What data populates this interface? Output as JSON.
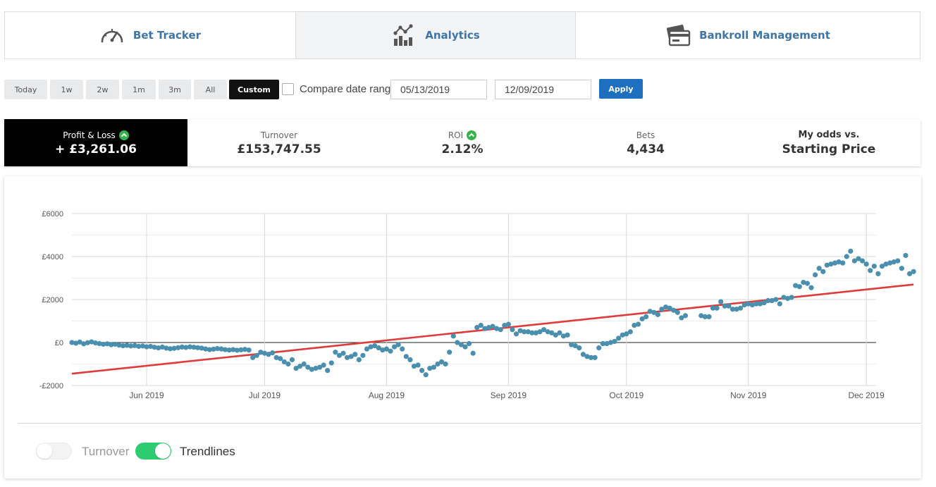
{
  "nav": {
    "tabs": [
      {
        "label": "Bet Tracker",
        "icon": "speedometer-icon",
        "active": false
      },
      {
        "label": "Analytics",
        "icon": "analytics-icon",
        "active": true
      },
      {
        "label": "Bankroll Management",
        "icon": "wallet-cards-icon",
        "active": false
      }
    ]
  },
  "filters": {
    "ranges": [
      "Today",
      "1w",
      "2w",
      "1m",
      "3m",
      "All",
      "Custom"
    ],
    "active_range": "Custom",
    "compare_label": "Compare date range",
    "compare_checked": false,
    "start_date": "05/13/2019",
    "end_date": "12/09/2019",
    "apply_label": "Apply",
    "accent_color": "#1e6fbe"
  },
  "stats": {
    "profit": {
      "label": "Profit & Loss",
      "value": "+ £3,261.06"
    },
    "turnover": {
      "label": "Turnover",
      "value": "£153,747.55"
    },
    "roi": {
      "label": "ROI",
      "value": "2.12%"
    },
    "bets": {
      "label": "Bets",
      "value": "4,434"
    },
    "odds": {
      "label": "My odds vs.",
      "value": "Starting Price"
    }
  },
  "chart_data": {
    "type": "scatter",
    "title": "",
    "xlabel": "",
    "ylabel": "",
    "x_start": "2019-05-13",
    "x_end": "2019-12-09",
    "x_ticks": [
      {
        "date": "2019-06-01",
        "label": "Jun 2019"
      },
      {
        "date": "2019-07-01",
        "label": "Jul 2019"
      },
      {
        "date": "2019-08-01",
        "label": "Aug 2019"
      },
      {
        "date": "2019-09-01",
        "label": "Sep 2019"
      },
      {
        "date": "2019-10-01",
        "label": "Oct 2019"
      },
      {
        "date": "2019-11-01",
        "label": "Nov 2019"
      },
      {
        "date": "2019-12-01",
        "label": "Dec 2019"
      }
    ],
    "y_ticks": [
      {
        "value": 6000,
        "label": "£6000"
      },
      {
        "value": 4000,
        "label": "£4000"
      },
      {
        "value": 2000,
        "label": "£2000"
      },
      {
        "value": 0,
        "label": "£0"
      },
      {
        "value": -2000,
        "label": "-£2000"
      }
    ],
    "ylim": [
      -2000,
      6000
    ],
    "grid": true,
    "point_color": "#4a8fae",
    "trend_color": "#e03b3b",
    "series": [
      {
        "values": [
          [
            "2019-05-13",
            0
          ],
          [
            "2019-05-14",
            -30
          ],
          [
            "2019-05-15",
            20
          ],
          [
            "2019-05-16",
            -60
          ],
          [
            "2019-05-17",
            -10
          ],
          [
            "2019-05-18",
            30
          ],
          [
            "2019-05-19",
            -20
          ],
          [
            "2019-05-20",
            -50
          ],
          [
            "2019-05-21",
            -80
          ],
          [
            "2019-05-22",
            -60
          ],
          [
            "2019-05-23",
            -100
          ],
          [
            "2019-05-24",
            -80
          ],
          [
            "2019-05-25",
            -120
          ],
          [
            "2019-05-26",
            -150
          ],
          [
            "2019-05-27",
            -130
          ],
          [
            "2019-05-28",
            -160
          ],
          [
            "2019-05-29",
            -140
          ],
          [
            "2019-05-30",
            -180
          ],
          [
            "2019-05-31",
            -160
          ],
          [
            "2019-06-01",
            -200
          ],
          [
            "2019-06-02",
            -180
          ],
          [
            "2019-06-03",
            -220
          ],
          [
            "2019-06-04",
            -250
          ],
          [
            "2019-06-05",
            -210
          ],
          [
            "2019-06-06",
            -260
          ],
          [
            "2019-06-07",
            -290
          ],
          [
            "2019-06-08",
            -270
          ],
          [
            "2019-06-09",
            -240
          ],
          [
            "2019-06-10",
            -210
          ],
          [
            "2019-06-11",
            -230
          ],
          [
            "2019-06-12",
            -200
          ],
          [
            "2019-06-13",
            -220
          ],
          [
            "2019-06-14",
            -240
          ],
          [
            "2019-06-15",
            -260
          ],
          [
            "2019-06-16",
            -300
          ],
          [
            "2019-06-17",
            -330
          ],
          [
            "2019-06-18",
            -310
          ],
          [
            "2019-06-19",
            -280
          ],
          [
            "2019-06-20",
            -300
          ],
          [
            "2019-06-21",
            -330
          ],
          [
            "2019-06-22",
            -350
          ],
          [
            "2019-06-23",
            -330
          ],
          [
            "2019-06-24",
            -360
          ],
          [
            "2019-06-25",
            -340
          ],
          [
            "2019-06-26",
            -320
          ],
          [
            "2019-06-27",
            -350
          ],
          [
            "2019-06-28",
            -700
          ],
          [
            "2019-06-29",
            -600
          ],
          [
            "2019-06-30",
            -450
          ],
          [
            "2019-07-01",
            -500
          ],
          [
            "2019-07-02",
            -550
          ],
          [
            "2019-07-03",
            -480
          ],
          [
            "2019-07-04",
            -700
          ],
          [
            "2019-07-05",
            -750
          ],
          [
            "2019-07-06",
            -900
          ],
          [
            "2019-07-07",
            -1000
          ],
          [
            "2019-07-08",
            -800
          ],
          [
            "2019-07-09",
            -1200
          ],
          [
            "2019-07-10",
            -1100
          ],
          [
            "2019-07-11",
            -1000
          ],
          [
            "2019-07-12",
            -1150
          ],
          [
            "2019-07-13",
            -1250
          ],
          [
            "2019-07-14",
            -1200
          ],
          [
            "2019-07-15",
            -1150
          ],
          [
            "2019-07-16",
            -1050
          ],
          [
            "2019-07-17",
            -1300
          ],
          [
            "2019-07-18",
            -950
          ],
          [
            "2019-07-19",
            -450
          ],
          [
            "2019-07-20",
            -600
          ],
          [
            "2019-07-21",
            -500
          ],
          [
            "2019-07-22",
            -700
          ],
          [
            "2019-07-23",
            -650
          ],
          [
            "2019-07-24",
            -550
          ],
          [
            "2019-07-25",
            -800
          ],
          [
            "2019-07-26",
            -600
          ],
          [
            "2019-07-27",
            -300
          ],
          [
            "2019-07-28",
            -200
          ],
          [
            "2019-07-29",
            -150
          ],
          [
            "2019-07-30",
            -250
          ],
          [
            "2019-07-31",
            -350
          ],
          [
            "2019-08-01",
            -300
          ],
          [
            "2019-08-02",
            -400
          ],
          [
            "2019-08-03",
            -200
          ],
          [
            "2019-08-04",
            -100
          ],
          [
            "2019-08-05",
            -300
          ],
          [
            "2019-08-06",
            -650
          ],
          [
            "2019-08-07",
            -800
          ],
          [
            "2019-08-08",
            -1100
          ],
          [
            "2019-08-09",
            -1050
          ],
          [
            "2019-08-10",
            -1300
          ],
          [
            "2019-08-11",
            -1500
          ],
          [
            "2019-08-12",
            -1200
          ],
          [
            "2019-08-13",
            -1150
          ],
          [
            "2019-08-14",
            -1000
          ],
          [
            "2019-08-15",
            -900
          ],
          [
            "2019-08-16",
            -1000
          ],
          [
            "2019-08-17",
            -450
          ],
          [
            "2019-08-18",
            300
          ],
          [
            "2019-08-19",
            0
          ],
          [
            "2019-08-20",
            -100
          ],
          [
            "2019-08-21",
            -200
          ],
          [
            "2019-08-22",
            -50
          ],
          [
            "2019-08-23",
            -500
          ],
          [
            "2019-08-24",
            700
          ],
          [
            "2019-08-25",
            800
          ],
          [
            "2019-08-26",
            650
          ],
          [
            "2019-08-27",
            700
          ],
          [
            "2019-08-28",
            750
          ],
          [
            "2019-08-29",
            650
          ],
          [
            "2019-08-30",
            600
          ],
          [
            "2019-08-31",
            800
          ],
          [
            "2019-09-01",
            850
          ],
          [
            "2019-09-02",
            600
          ],
          [
            "2019-09-03",
            400
          ],
          [
            "2019-09-04",
            550
          ],
          [
            "2019-09-05",
            500
          ],
          [
            "2019-09-06",
            500
          ],
          [
            "2019-09-07",
            450
          ],
          [
            "2019-09-08",
            450
          ],
          [
            "2019-09-09",
            500
          ],
          [
            "2019-09-10",
            600
          ],
          [
            "2019-09-11",
            500
          ],
          [
            "2019-09-12",
            450
          ],
          [
            "2019-09-13",
            350
          ],
          [
            "2019-09-14",
            450
          ],
          [
            "2019-09-15",
            300
          ],
          [
            "2019-09-16",
            350
          ],
          [
            "2019-09-17",
            -100
          ],
          [
            "2019-09-18",
            -150
          ],
          [
            "2019-09-19",
            -250
          ],
          [
            "2019-09-20",
            -550
          ],
          [
            "2019-09-21",
            -650
          ],
          [
            "2019-09-22",
            -700
          ],
          [
            "2019-09-23",
            -700
          ],
          [
            "2019-09-24",
            -250
          ],
          [
            "2019-09-25",
            -50
          ],
          [
            "2019-09-26",
            -50
          ],
          [
            "2019-09-27",
            0
          ],
          [
            "2019-09-28",
            50
          ],
          [
            "2019-09-29",
            200
          ],
          [
            "2019-09-30",
            350
          ],
          [
            "2019-10-01",
            400
          ],
          [
            "2019-10-02",
            500
          ],
          [
            "2019-10-03",
            800
          ],
          [
            "2019-10-04",
            850
          ],
          [
            "2019-10-05",
            1100
          ],
          [
            "2019-10-06",
            1200
          ],
          [
            "2019-10-07",
            1450
          ],
          [
            "2019-10-08",
            1400
          ],
          [
            "2019-10-09",
            1300
          ],
          [
            "2019-10-10",
            1550
          ],
          [
            "2019-10-11",
            1650
          ],
          [
            "2019-10-12",
            1600
          ],
          [
            "2019-10-13",
            1500
          ],
          [
            "2019-10-14",
            1400
          ],
          [
            "2019-10-15",
            1150
          ],
          [
            "2019-10-16",
            1250
          ],
          [
            "2019-10-20",
            1250
          ],
          [
            "2019-10-21",
            1200
          ],
          [
            "2019-10-22",
            1200
          ],
          [
            "2019-10-23",
            1600
          ],
          [
            "2019-10-24",
            1600
          ],
          [
            "2019-10-25",
            1900
          ],
          [
            "2019-10-26",
            1700
          ],
          [
            "2019-10-27",
            1700
          ],
          [
            "2019-10-28",
            1550
          ],
          [
            "2019-10-29",
            1550
          ],
          [
            "2019-10-30",
            1600
          ],
          [
            "2019-10-31",
            1750
          ],
          [
            "2019-11-01",
            1800
          ],
          [
            "2019-11-02",
            1750
          ],
          [
            "2019-11-03",
            1800
          ],
          [
            "2019-11-04",
            1800
          ],
          [
            "2019-11-05",
            1850
          ],
          [
            "2019-11-06",
            1950
          ],
          [
            "2019-11-07",
            1950
          ],
          [
            "2019-11-08",
            2000
          ],
          [
            "2019-11-09",
            1800
          ],
          [
            "2019-11-10",
            2100
          ],
          [
            "2019-11-11",
            2050
          ],
          [
            "2019-11-12",
            2100
          ],
          [
            "2019-11-13",
            2650
          ],
          [
            "2019-11-14",
            2600
          ],
          [
            "2019-11-15",
            2800
          ],
          [
            "2019-11-16",
            2750
          ],
          [
            "2019-11-17",
            2550
          ],
          [
            "2019-11-18",
            3150
          ],
          [
            "2019-11-19",
            3450
          ],
          [
            "2019-11-20",
            3300
          ],
          [
            "2019-11-21",
            3600
          ],
          [
            "2019-11-22",
            3650
          ],
          [
            "2019-11-23",
            3700
          ],
          [
            "2019-11-24",
            3750
          ],
          [
            "2019-11-25",
            3700
          ],
          [
            "2019-11-26",
            4000
          ],
          [
            "2019-11-27",
            4250
          ],
          [
            "2019-11-28",
            3800
          ],
          [
            "2019-11-29",
            3900
          ],
          [
            "2019-11-30",
            3800
          ],
          [
            "2019-12-01",
            3650
          ],
          [
            "2019-12-02",
            3350
          ],
          [
            "2019-12-03",
            3550
          ],
          [
            "2019-12-04",
            3200
          ],
          [
            "2019-12-05",
            3550
          ],
          [
            "2019-12-06",
            3650
          ],
          [
            "2019-12-07",
            3700
          ],
          [
            "2019-12-08",
            3750
          ],
          [
            "2019-12-09",
            3800
          ],
          [
            "2019-12-10",
            3450
          ],
          [
            "2019-12-11",
            4050
          ],
          [
            "2019-12-12",
            3200
          ],
          [
            "2019-12-13",
            3300
          ]
        ]
      }
    ],
    "trendline": {
      "start": [
        "2019-05-13",
        -1450
      ],
      "end": [
        "2019-12-13",
        2700
      ]
    }
  },
  "toggles": [
    {
      "label": "Turnover",
      "on": false
    },
    {
      "label": "Trendlines",
      "on": true,
      "color": "#2ecc71"
    }
  ]
}
